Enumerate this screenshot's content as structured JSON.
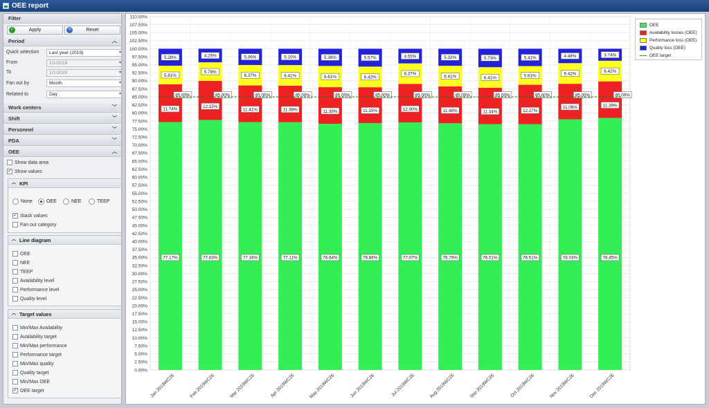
{
  "window": {
    "title": "OEE report"
  },
  "filter": {
    "title": "Filter",
    "apply_label": "Apply",
    "reset_label": "Reset"
  },
  "period": {
    "title": "Period",
    "quick_selection_label": "Quick selection",
    "quick_selection_value": "Last year (2019)",
    "from_label": "From",
    "from_value": "1/1/2019",
    "to_label": "To",
    "to_value": "1/1/2020",
    "fan_out_by_label": "Fan out by",
    "fan_out_by_value": "Month",
    "related_to_label": "Related to",
    "related_to_value": "Day"
  },
  "sections": {
    "work_centers": "Work centers",
    "shift": "Shift",
    "personnel": "Personnel",
    "pda": "PDA",
    "oee": "OEE"
  },
  "oee_options": {
    "show_data_area": {
      "label": "Show data area",
      "checked": false
    },
    "show_values": {
      "label": "Show values",
      "checked": true
    }
  },
  "kpi": {
    "title": "KPI",
    "radios": [
      {
        "label": "None",
        "selected": false
      },
      {
        "label": "OEE",
        "selected": true
      },
      {
        "label": "NEE",
        "selected": false
      },
      {
        "label": "TEEP",
        "selected": false
      }
    ],
    "stack_values": {
      "label": "Stack values",
      "checked": true
    },
    "fan_out_category": {
      "label": "Fan out category",
      "checked": false
    }
  },
  "line_diagram": {
    "title": "Line diagram",
    "items": [
      {
        "label": "OEE",
        "checked": false
      },
      {
        "label": "NEE",
        "checked": false
      },
      {
        "label": "TEEP",
        "checked": false
      },
      {
        "label": "Availability level",
        "checked": false
      },
      {
        "label": "Performance level",
        "checked": false
      },
      {
        "label": "Quality level",
        "checked": false
      }
    ]
  },
  "target_values": {
    "title": "Target values",
    "items": [
      {
        "label": "Min/Max Availability",
        "checked": false
      },
      {
        "label": "Availability target",
        "checked": false
      },
      {
        "label": "Min/Max performance",
        "checked": false
      },
      {
        "label": "Performance target",
        "checked": false
      },
      {
        "label": "Min/Max quality",
        "checked": false
      },
      {
        "label": "Quality target",
        "checked": false
      },
      {
        "label": "Min/Max OEE",
        "checked": false
      },
      {
        "label": "OEE target",
        "checked": true
      }
    ]
  },
  "colors": {
    "oee": "#33ee55",
    "availability": "#ee2222",
    "performance": "#ffff22",
    "quality": "#2222dd",
    "target": "#1a7a1a"
  },
  "chart_data": {
    "type": "bar",
    "stacked": true,
    "categories": [
      "Jan 2019WC26",
      "Feb 2019WC26",
      "Mar 2019WC26",
      "Apr 2019WC26",
      "May 2019WC26",
      "Jun 2019WC26",
      "Jul 2019WC26",
      "Aug 2019WC26",
      "Sep 2019WC26",
      "Oct 2019WC26",
      "Nov 2019WC26",
      "Dec 2019WC26"
    ],
    "series": [
      {
        "name": "OEE",
        "values": [
          77.17,
          77.83,
          77.16,
          77.11,
          76.64,
          76.86,
          77.07,
          76.79,
          76.51,
          76.51,
          78.03,
          78.45
        ]
      },
      {
        "name": "Availability losses (OEE)",
        "values": [
          11.74,
          12.15,
          11.41,
          11.38,
          11.39,
          11.15,
          12.0,
          11.48,
          11.34,
          12.27,
          11.06,
          11.39
        ]
      },
      {
        "name": "Performance loss (OEE)",
        "values": [
          5.81,
          5.78,
          6.37,
          6.41,
          6.61,
          6.42,
          6.37,
          6.41,
          6.41,
          5.81,
          6.42,
          6.42
        ]
      },
      {
        "name": "Quality loss (OEE)",
        "values": [
          5.28,
          4.25,
          5.06,
          5.1,
          5.36,
          5.57,
          4.55,
          5.32,
          5.73,
          5.41,
          4.48,
          3.74
        ]
      }
    ],
    "target": {
      "name": "OEE target",
      "value": 85.0,
      "label": "85.00%"
    },
    "ylim": [
      0,
      110
    ],
    "ytick_step": 2.5,
    "ytick_labels": [
      "0.00%",
      "2.50%",
      "5.00%",
      "7.50%",
      "10.00%",
      "12.50%",
      "15.00%",
      "17.50%",
      "20.00%",
      "22.50%",
      "25.00%",
      "27.50%",
      "30.00%",
      "32.50%",
      "35.00%",
      "37.50%",
      "40.00%",
      "42.50%",
      "45.00%",
      "47.50%",
      "50.00%",
      "52.50%",
      "55.00%",
      "57.50%",
      "60.00%",
      "62.50%",
      "65.00%",
      "67.50%",
      "70.00%",
      "72.50%",
      "75.00%",
      "77.50%",
      "80.00%",
      "82.50%",
      "85.00%",
      "87.50%",
      "90.00%",
      "92.50%",
      "95.00%",
      "97.50%",
      "100.00%",
      "102.50%",
      "105.00%",
      "107.50%",
      "110.00%"
    ],
    "value_labels": {
      "OEE": [
        "77.17%",
        "77.83%",
        "77.16%",
        "77.11%",
        "76.64%",
        "76.86%",
        "77.07%",
        "76.79%",
        "76.51%",
        "76.51%",
        "78.03%",
        "78.45%"
      ],
      "Availability losses (OEE)": [
        "11.74%",
        "12.15%",
        "11.41%",
        "11.38%",
        "11.39%",
        "11.15%",
        "12.00%",
        "11.48%",
        "11.34%",
        "12.27%",
        "11.06%",
        "11.39%"
      ],
      "Performance loss (OEE)": [
        "5.81%",
        "5.78%",
        "6.37%",
        "6.41%",
        "6.61%",
        "6.42%",
        "6.37%",
        "6.41%",
        "6.41%",
        "5.81%",
        "6.42%",
        "6.42%"
      ],
      "Quality loss (OEE)": [
        "5.28%",
        "4.25%",
        "5.06%",
        "5.10%",
        "5.36%",
        "5.57%",
        "4.55%",
        "5.32%",
        "5.73%",
        "5.41%",
        "4.48%",
        "3.74%"
      ]
    },
    "grid": true,
    "legend_position": "top-right"
  }
}
